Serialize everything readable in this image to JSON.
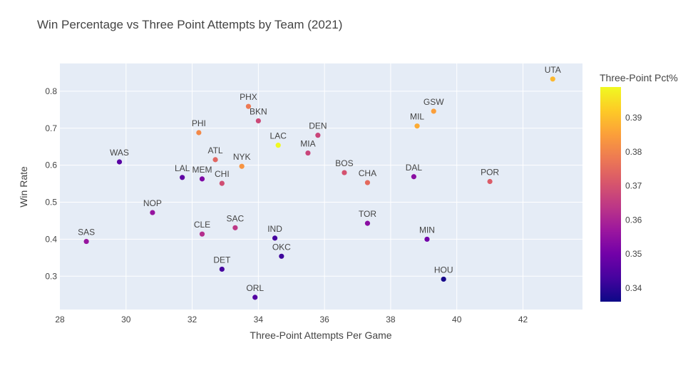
{
  "chart_data": {
    "type": "scatter",
    "title": "Win Percentage vs Three Point Attempts by Team (2021)",
    "xlabel": "Three-Point Attempts Per Game",
    "ylabel": "Win Rate",
    "xlim": [
      28,
      43.8
    ],
    "ylim": [
      0.21,
      0.875
    ],
    "xticks": [
      28,
      30,
      32,
      34,
      36,
      38,
      40,
      42
    ],
    "yticks": [
      0.3,
      0.4,
      0.5,
      0.6,
      0.7,
      0.8
    ],
    "grid": true,
    "plot_bg": "#e5ecf6",
    "colorbar": {
      "title": "Three-Point Pct%",
      "range": [
        0.336,
        0.399
      ],
      "ticks": [
        0.34,
        0.35,
        0.36,
        0.37,
        0.38,
        0.39
      ],
      "colorscale": [
        "#0d0887",
        "#46039f",
        "#7201a8",
        "#9c179e",
        "#bd3786",
        "#d8576b",
        "#ed7953",
        "#fb9f3a",
        "#fdca26",
        "#f0f921"
      ]
    },
    "points": [
      {
        "team": "UTA",
        "x": 42.9,
        "y": 0.833,
        "c": 0.389
      },
      {
        "team": "PHX",
        "x": 33.7,
        "y": 0.759,
        "c": 0.378
      },
      {
        "team": "GSW",
        "x": 39.3,
        "y": 0.746,
        "c": 0.385
      },
      {
        "team": "BKN",
        "x": 34.0,
        "y": 0.72,
        "c": 0.368
      },
      {
        "team": "MIL",
        "x": 38.8,
        "y": 0.706,
        "c": 0.387
      },
      {
        "team": "PHI",
        "x": 32.2,
        "y": 0.688,
        "c": 0.381
      },
      {
        "team": "DEN",
        "x": 35.8,
        "y": 0.681,
        "c": 0.367
      },
      {
        "team": "LAC",
        "x": 34.6,
        "y": 0.654,
        "c": 0.399
      },
      {
        "team": "MIA",
        "x": 35.5,
        "y": 0.633,
        "c": 0.367
      },
      {
        "team": "ATL",
        "x": 32.7,
        "y": 0.615,
        "c": 0.374
      },
      {
        "team": "WAS",
        "x": 29.8,
        "y": 0.609,
        "c": 0.346
      },
      {
        "team": "NYK",
        "x": 33.5,
        "y": 0.597,
        "c": 0.383
      },
      {
        "team": "BOS",
        "x": 36.6,
        "y": 0.58,
        "c": 0.37
      },
      {
        "team": "DAL",
        "x": 38.7,
        "y": 0.569,
        "c": 0.354
      },
      {
        "team": "LAL",
        "x": 31.7,
        "y": 0.567,
        "c": 0.347
      },
      {
        "team": "MEM",
        "x": 32.3,
        "y": 0.563,
        "c": 0.352
      },
      {
        "team": "POR",
        "x": 41.0,
        "y": 0.556,
        "c": 0.372
      },
      {
        "team": "CHA",
        "x": 37.3,
        "y": 0.553,
        "c": 0.375
      },
      {
        "team": "CHI",
        "x": 32.9,
        "y": 0.551,
        "c": 0.369
      },
      {
        "team": "NOP",
        "x": 30.8,
        "y": 0.472,
        "c": 0.356
      },
      {
        "team": "TOR",
        "x": 37.3,
        "y": 0.443,
        "c": 0.354
      },
      {
        "team": "SAC",
        "x": 33.3,
        "y": 0.431,
        "c": 0.364
      },
      {
        "team": "CLE",
        "x": 32.3,
        "y": 0.414,
        "c": 0.362
      },
      {
        "team": "IND",
        "x": 34.5,
        "y": 0.403,
        "c": 0.343
      },
      {
        "team": "MIN",
        "x": 39.1,
        "y": 0.4,
        "c": 0.35
      },
      {
        "team": "SAS",
        "x": 28.8,
        "y": 0.394,
        "c": 0.356
      },
      {
        "team": "OKC",
        "x": 34.7,
        "y": 0.354,
        "c": 0.342
      },
      {
        "team": "DET",
        "x": 32.9,
        "y": 0.319,
        "c": 0.343
      },
      {
        "team": "HOU",
        "x": 39.6,
        "y": 0.292,
        "c": 0.337
      },
      {
        "team": "ORL",
        "x": 33.9,
        "y": 0.243,
        "c": 0.345
      }
    ]
  }
}
